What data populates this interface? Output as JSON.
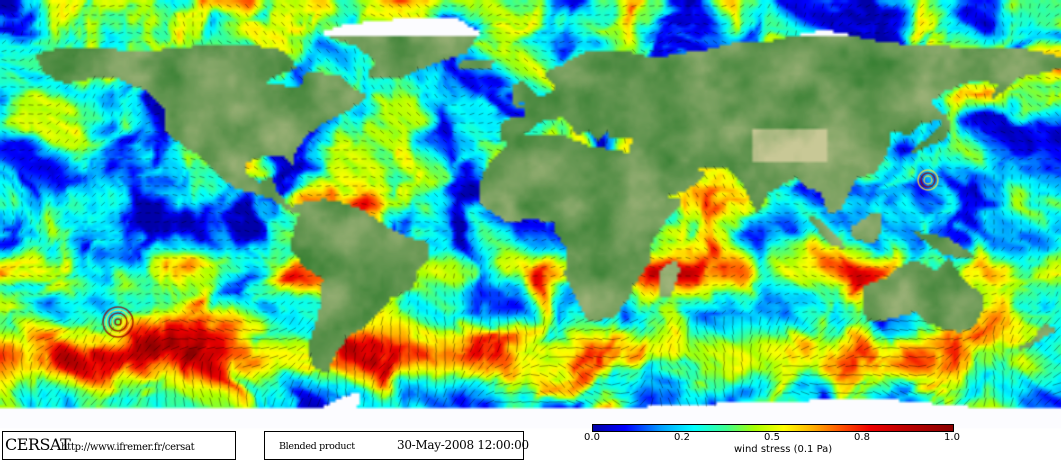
{
  "map": {
    "projection": "equirectangular",
    "date": "30-May-2008 12:00:00",
    "colors": {
      "land_lowland": "#3f8f3c",
      "land_highland": "#c9c39a",
      "ice": "#ffffff",
      "ocean_low": "#0020ff",
      "ocean_mid": "#ffff00",
      "ocean_high": "#c00000"
    },
    "storms": [
      "central-pacific cyclone",
      "northwest-pacific typhoon"
    ]
  },
  "footer": {
    "brand": "CERSAT",
    "url": "http://www.ifremer.fr/cersat",
    "product": "Blended product",
    "timestamp": "30-May-2008 12:00:00"
  },
  "legend": {
    "title": "wind stress (0.1 Pa)",
    "ticks": [
      "0.0",
      "0.2",
      "0.5",
      "0.8",
      "1.0"
    ]
  }
}
